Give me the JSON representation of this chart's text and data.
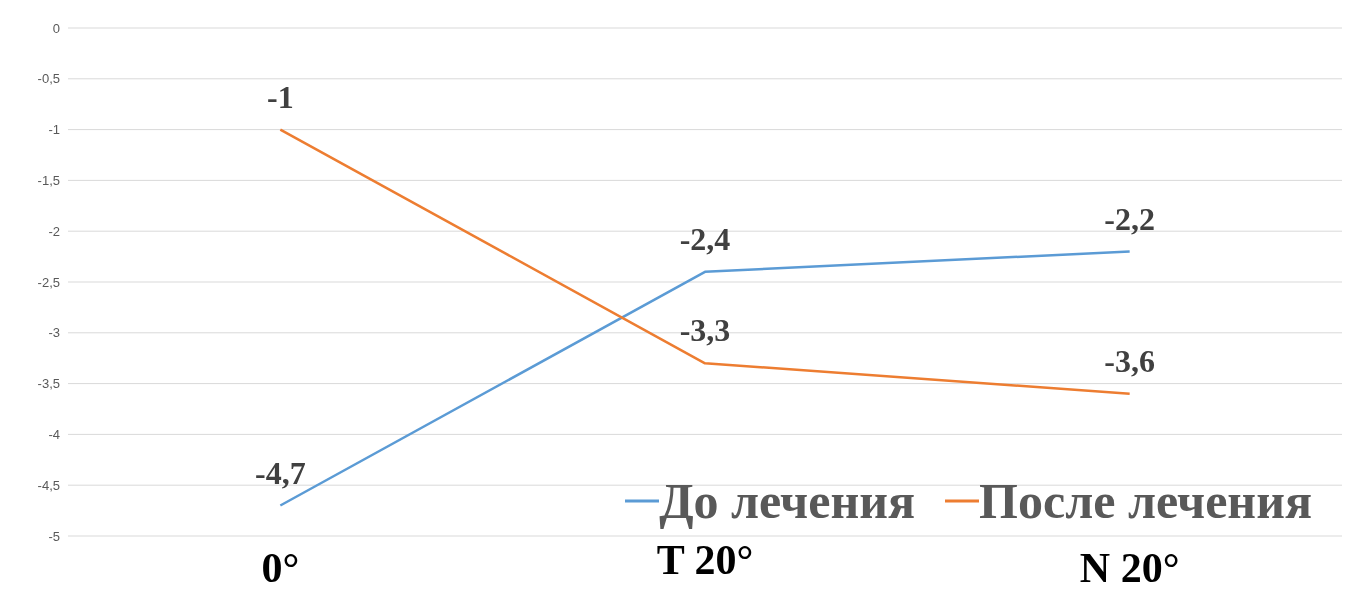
{
  "chart_data": {
    "type": "line",
    "categories": [
      "0°",
      "T 20°",
      "N 20°"
    ],
    "series": [
      {
        "name": "До лечения",
        "color": "#5b9bd5",
        "values": [
          -4.7,
          -2.4,
          -2.2
        ],
        "value_labels": [
          "-4,7",
          "-2,4",
          "-2,2"
        ]
      },
      {
        "name": "После лечения",
        "color": "#ed7d31",
        "values": [
          -1,
          -3.3,
          -3.6
        ],
        "value_labels": [
          "-1",
          "-3,3",
          "-3,6"
        ]
      }
    ],
    "ylim": [
      -5,
      0
    ],
    "yticks": [
      {
        "value": -5,
        "label": "-5"
      },
      {
        "value": -4.5,
        "label": "-4,5"
      },
      {
        "value": -4,
        "label": "-4"
      },
      {
        "value": -3.5,
        "label": "-3,5"
      },
      {
        "value": -3,
        "label": "-3"
      },
      {
        "value": -2.5,
        "label": "-2,5"
      },
      {
        "value": -2,
        "label": "-2"
      },
      {
        "value": -1.5,
        "label": "-1,5"
      },
      {
        "value": -1,
        "label": "-1"
      },
      {
        "value": -0.5,
        "label": "-0,5"
      },
      {
        "value": 0,
        "label": "0"
      }
    ],
    "grid": "y",
    "legend": "bottom right",
    "marker": "none",
    "line_style": "solid"
  }
}
